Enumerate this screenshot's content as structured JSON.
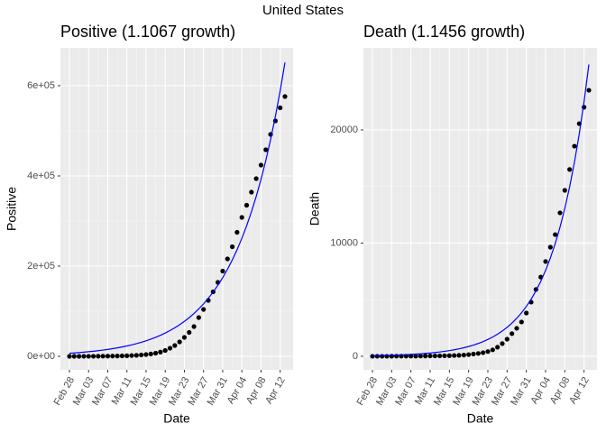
{
  "title": "United States",
  "chart_data": [
    {
      "type": "scatter",
      "title": "Positive (1.1067 growth)",
      "x_label": "Date",
      "y_label": "Positive",
      "categories": [
        "Feb 28",
        null,
        null,
        null,
        "Mar 03",
        null,
        null,
        null,
        "Mar 07",
        null,
        null,
        null,
        "Mar 11",
        null,
        null,
        null,
        "Mar 15",
        null,
        null,
        null,
        "Mar 19",
        null,
        null,
        null,
        "Mar 23",
        null,
        null,
        null,
        "Mar 27",
        null,
        null,
        null,
        "Mar 31",
        null,
        null,
        null,
        "Apr 04",
        null,
        null,
        null,
        "Apr 08",
        null,
        null,
        null,
        "Apr 12",
        null
      ],
      "series": [
        {
          "style": "points",
          "color": "#000000",
          "values": [
            10,
            15,
            30,
            60,
            100,
            150,
            230,
            330,
            430,
            560,
            750,
            1000,
            1300,
            1700,
            2300,
            3100,
            4000,
            5300,
            7000,
            9500,
            13000,
            18000,
            24000,
            32000,
            42000,
            53000,
            66000,
            86000,
            104000,
            124000,
            143000,
            164000,
            189000,
            216000,
            243000,
            275000,
            308000,
            335000,
            364000,
            394000,
            424000,
            458000,
            492000,
            522000,
            551000,
            576000
          ]
        },
        {
          "style": "line",
          "color": "#0000ff",
          "values": [
            6800,
            7526,
            8329,
            9218,
            10201,
            11290,
            12494,
            13827,
            15303,
            16936,
            18743,
            20743,
            22956,
            25406,
            28117,
            31117,
            34437,
            38111,
            42178,
            46678,
            51659,
            57171,
            63271,
            70022,
            77493,
            85762,
            94913,
            105040,
            116248,
            128652,
            142379,
            157570,
            174383,
            192990,
            213582,
            236371,
            261592,
            289503,
            320393,
            354578,
            392411,
            434281,
            480618,
            531900,
            588654,
            651463
          ]
        }
      ],
      "ylim": [
        -30000,
        684000
      ],
      "yticks": [
        {
          "value": 0,
          "label": "0e+00"
        },
        {
          "value": 200000,
          "label": "2e+05"
        },
        {
          "value": 400000,
          "label": "4e+05"
        },
        {
          "value": 600000,
          "label": "6e+05"
        }
      ],
      "grid": true
    },
    {
      "type": "scatter",
      "title": "Death (1.1456 growth)",
      "x_label": "Date",
      "y_label": "Death",
      "categories": [
        "Feb 28",
        null,
        null,
        null,
        "Mar 03",
        null,
        null,
        null,
        "Mar 07",
        null,
        null,
        null,
        "Mar 11",
        null,
        null,
        null,
        "Mar 15",
        null,
        null,
        null,
        "Mar 19",
        null,
        null,
        null,
        "Mar 23",
        null,
        null,
        null,
        "Mar 27",
        null,
        null,
        null,
        "Mar 31",
        null,
        null,
        null,
        "Apr 04",
        null,
        null,
        null,
        "Apr 08",
        null,
        null,
        null,
        "Apr 12",
        null
      ],
      "series": [
        {
          "style": "points",
          "color": "#000000",
          "values": [
            0,
            0,
            1,
            2,
            6,
            9,
            10,
            12,
            14,
            17,
            20,
            24,
            28,
            33,
            38,
            45,
            55,
            68,
            85,
            110,
            150,
            200,
            250,
            320,
            420,
            570,
            800,
            1120,
            1510,
            2000,
            2470,
            3030,
            3820,
            4780,
            5900,
            7000,
            8370,
            9640,
            10750,
            12670,
            14660,
            16500,
            18560,
            20550,
            22000,
            23500
          ]
        },
        {
          "style": "line",
          "color": "#0000ff",
          "values": [
            57,
            65,
            75,
            86,
            98,
            112,
            129,
            147,
            169,
            193,
            221,
            254,
            291,
            333,
            381,
            437,
            500,
            573,
            657,
            752,
            862,
            987,
            1131,
            1296,
            1484,
            1700,
            1948,
            2232,
            2557,
            2929,
            3355,
            3844,
            4404,
            5045,
            5779,
            6621,
            7585,
            8689,
            9954,
            11403,
            13063,
            14965,
            17144,
            19640,
            22500,
            25776
          ]
        }
      ],
      "ylim": [
        -1200,
        27250
      ],
      "yticks": [
        0,
        10000,
        20000
      ],
      "grid": true
    }
  ]
}
